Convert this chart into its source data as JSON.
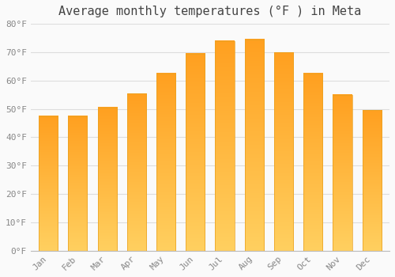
{
  "title": "Average monthly temperatures (°F ) in Meta",
  "months": [
    "Jan",
    "Feb",
    "Mar",
    "Apr",
    "May",
    "Jun",
    "Jul",
    "Aug",
    "Sep",
    "Oct",
    "Nov",
    "Dec"
  ],
  "values": [
    47.5,
    47.5,
    50.5,
    55.5,
    62.5,
    69.5,
    74.0,
    74.5,
    70.0,
    62.5,
    55.0,
    49.5
  ],
  "bar_color_bottom": "#FFD060",
  "bar_color_top": "#FFA020",
  "bar_edge_color": "#E8A020",
  "ylim": [
    0,
    80
  ],
  "yticks": [
    0,
    10,
    20,
    30,
    40,
    50,
    60,
    70,
    80
  ],
  "ytick_labels": [
    "0°F",
    "10°F",
    "20°F",
    "30°F",
    "40°F",
    "50°F",
    "60°F",
    "70°F",
    "80°F"
  ],
  "background_color": "#FAFAFA",
  "grid_color": "#DDDDDD",
  "title_fontsize": 11,
  "tick_fontsize": 8,
  "font_family": "monospace",
  "tick_color": "#888888",
  "title_color": "#444444"
}
